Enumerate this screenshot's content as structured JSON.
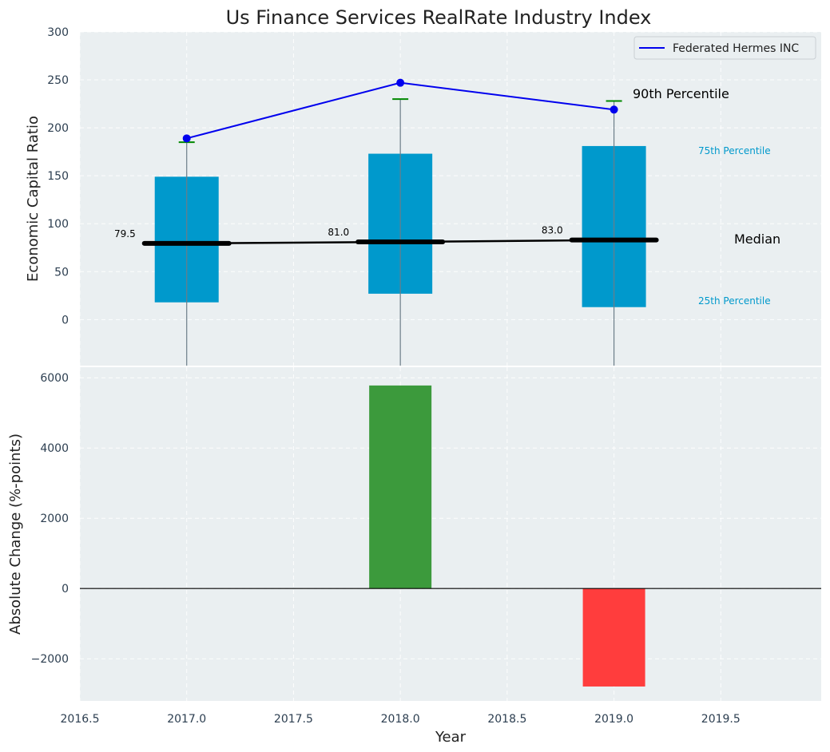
{
  "chart_data": [
    {
      "type": "box",
      "title": "Us Finance Services RealRate Industry Index",
      "ylabel": "Economic Capital Ratio",
      "ylim": [
        -48,
        300
      ],
      "yticks": [
        0,
        50,
        100,
        150,
        200,
        250,
        300
      ],
      "x": [
        2017.0,
        2018.0,
        2019.0
      ],
      "percentile_25": [
        18,
        27,
        13
      ],
      "percentile_75": [
        149,
        173,
        181
      ],
      "percentile_90": [
        185,
        230,
        228
      ],
      "median": [
        79.5,
        81.0,
        83.0
      ],
      "median_labels": [
        "79.5",
        "81.0",
        "83.0"
      ],
      "series": [
        {
          "name": "Federated Hermes INC",
          "values": [
            189,
            247,
            219
          ],
          "color": "#0000ee"
        }
      ],
      "annotations": {
        "p90": "90th Percentile",
        "p75": "75th Percentile",
        "median": "Median",
        "p25": "25th Percentile"
      },
      "legend_position": "top-right",
      "grid": true,
      "colors": {
        "box": "#0099cc",
        "median": "#000000",
        "p90_cap": "#008800",
        "background": "#eaeff1"
      }
    },
    {
      "type": "bar",
      "xlabel": "Year",
      "ylabel": "Absolute Change (%-points)",
      "xlim": [
        2016.5,
        2019.97
      ],
      "ylim": [
        -3200,
        6300
      ],
      "xticks": [
        "2016.5",
        "2017.0",
        "2017.5",
        "2018.0",
        "2018.5",
        "2019.0",
        "2019.5"
      ],
      "yticks": [
        -2000,
        0,
        2000,
        4000,
        6000
      ],
      "ytick_labels": [
        "−2000",
        "0",
        "2000",
        "4000",
        "6000"
      ],
      "x": [
        2018.0,
        2019.0
      ],
      "values": [
        5780,
        -2790
      ],
      "colors": [
        "#3c9a3c",
        "#ff3d3d"
      ],
      "grid": true
    }
  ]
}
